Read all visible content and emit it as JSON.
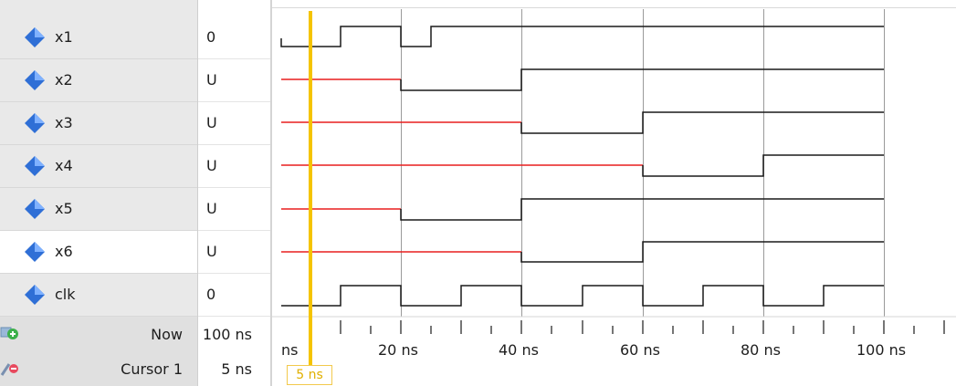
{
  "signals": [
    {
      "name": "x1",
      "value": "0"
    },
    {
      "name": "x2",
      "value": "U"
    },
    {
      "name": "x3",
      "value": "U"
    },
    {
      "name": "x4",
      "value": "U"
    },
    {
      "name": "x5",
      "value": "U"
    },
    {
      "name": "x6",
      "value": "U"
    },
    {
      "name": "clk",
      "value": "0"
    }
  ],
  "footer": {
    "now_label": "Now",
    "now_value": "100 ns",
    "cursor_label": "Cursor 1",
    "cursor_value": "5 ns"
  },
  "timeline": {
    "tick_labels": [
      "ns",
      "20 ns",
      "40 ns",
      "60 ns",
      "80 ns",
      "100 ns"
    ],
    "cursor_label": "5 ns"
  },
  "colors": {
    "wave": "#1a1a1a",
    "undefined": "#e81e1e",
    "cursor": "#f5c400",
    "grid": "#9a9a9a",
    "signal_icon": "#2f6fd6"
  },
  "icons": [
    "signal-diamond-icon",
    "add-wave-icon",
    "cursor-tools-icon"
  ]
}
